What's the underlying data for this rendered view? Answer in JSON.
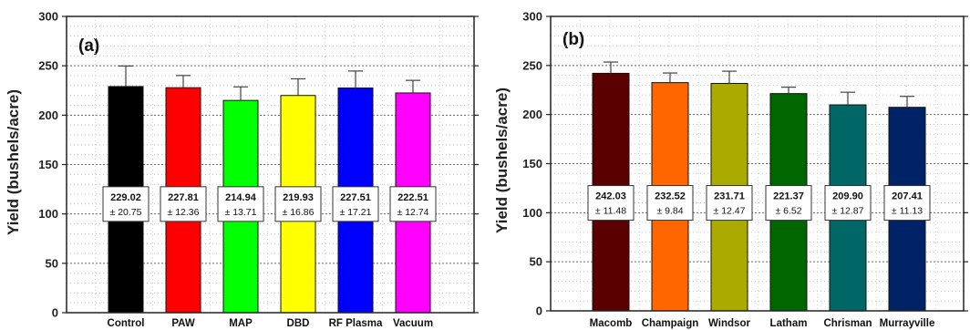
{
  "chart_data": [
    {
      "type": "bar",
      "panel_label": "(a)",
      "ylabel": "Yield (bushels/acre)",
      "xlabel": "",
      "ylim": [
        0,
        300
      ],
      "yticks": [
        0,
        50,
        100,
        150,
        200,
        250,
        300
      ],
      "grid": true,
      "error_bars": true,
      "categories": [
        "Control",
        "PAW",
        "MAP",
        "DBD",
        "RF Plasma",
        "Vacuum"
      ],
      "values": [
        229.02,
        227.81,
        214.94,
        219.93,
        227.51,
        222.51
      ],
      "errors": [
        20.75,
        12.36,
        13.71,
        16.86,
        17.21,
        12.74
      ],
      "data_labels": [
        {
          "mean": "229.02",
          "sd": "± 20.75"
        },
        {
          "mean": "227.81",
          "sd": "± 12.36"
        },
        {
          "mean": "214.94",
          "sd": "± 13.71"
        },
        {
          "mean": "219.93",
          "sd": "± 16.86"
        },
        {
          "mean": "227.51",
          "sd": "± 17.21"
        },
        {
          "mean": "222.51",
          "sd": "± 12.74"
        }
      ],
      "colors": [
        "#000000",
        "#ff0000",
        "#00ff00",
        "#ffff00",
        "#0000ff",
        "#ff00ff"
      ]
    },
    {
      "type": "bar",
      "panel_label": "(b)",
      "ylabel": "Yield (bushels/acre)",
      "xlabel": "",
      "ylim": [
        0,
        300
      ],
      "yticks": [
        0,
        50,
        100,
        150,
        200,
        250,
        300
      ],
      "grid": true,
      "error_bars": true,
      "categories": [
        "Macomb",
        "Champaign",
        "Windsor",
        "Latham",
        "Chrisman",
        "Murrayville"
      ],
      "values": [
        242.03,
        232.52,
        231.71,
        221.37,
        209.9,
        207.41
      ],
      "errors": [
        11.48,
        9.84,
        12.47,
        6.52,
        12.87,
        11.13
      ],
      "data_labels": [
        {
          "mean": "242.03",
          "sd": "± 11.48"
        },
        {
          "mean": "232.52",
          "sd": "± 9.84"
        },
        {
          "mean": "231.71",
          "sd": "± 12.47"
        },
        {
          "mean": "221.37",
          "sd": "± 6.52"
        },
        {
          "mean": "209.90",
          "sd": "± 12.87"
        },
        {
          "mean": "207.41",
          "sd": "± 11.13"
        }
      ],
      "colors": [
        "#5a0000",
        "#ff6600",
        "#aaaa00",
        "#006600",
        "#006666",
        "#002266"
      ]
    }
  ]
}
